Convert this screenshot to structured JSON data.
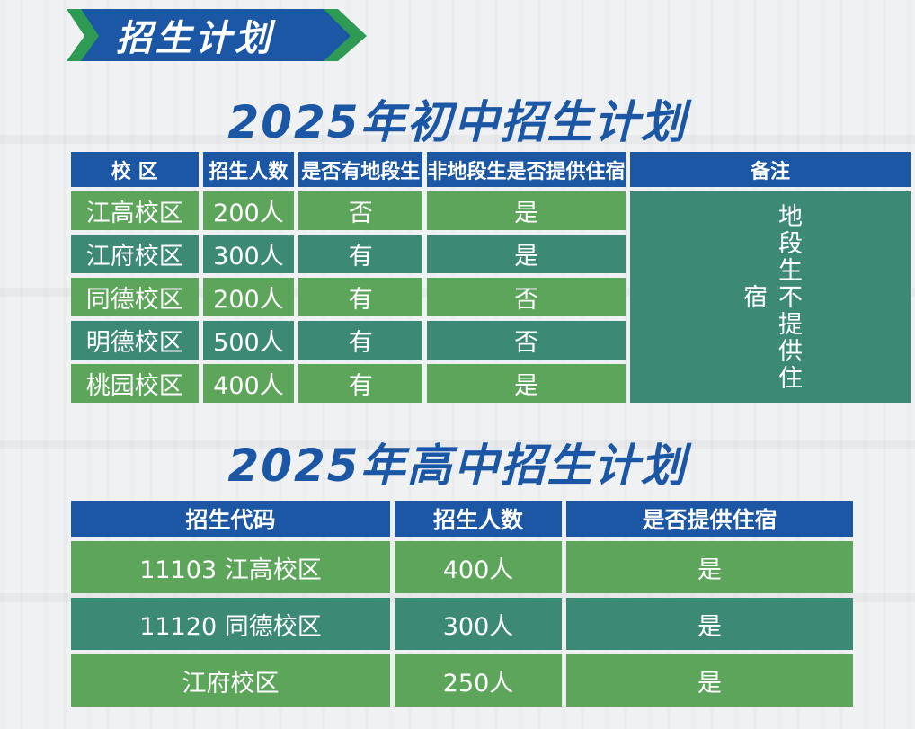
{
  "banner": {
    "title": "招生计划"
  },
  "junior": {
    "heading": "2025年初中招生计划",
    "headers": [
      "校 区",
      "招生人数",
      "是否有地段生",
      "非地段生是否提供住宿",
      "备注"
    ],
    "rows": [
      {
        "campus": "江高校区",
        "count": "200人",
        "district": "否",
        "lodging": "是"
      },
      {
        "campus": "江府校区",
        "count": "300人",
        "district": "有",
        "lodging": "是"
      },
      {
        "campus": "同德校区",
        "count": "200人",
        "district": "有",
        "lodging": "否"
      },
      {
        "campus": "明德校区",
        "count": "500人",
        "district": "有",
        "lodging": "否"
      },
      {
        "campus": "桃园校区",
        "count": "400人",
        "district": "有",
        "lodging": "是"
      }
    ],
    "note": "地段生不提供住宿"
  },
  "senior": {
    "heading": "2025年高中招生计划",
    "headers": [
      "招生代码",
      "招生人数",
      "是否提供住宿"
    ],
    "rows": [
      {
        "code": "11103 江高校区",
        "count": "400人",
        "lodging": "是"
      },
      {
        "code": "11120 同德校区",
        "count": "300人",
        "lodging": "是"
      },
      {
        "code": "江府校区",
        "count": "250人",
        "lodging": "是"
      }
    ]
  },
  "colors": {
    "header_blue": "#1b57a4",
    "green_light": "#5ea55c",
    "green_dark": "#3c8a76",
    "banner_accent": "#2e9a54"
  }
}
